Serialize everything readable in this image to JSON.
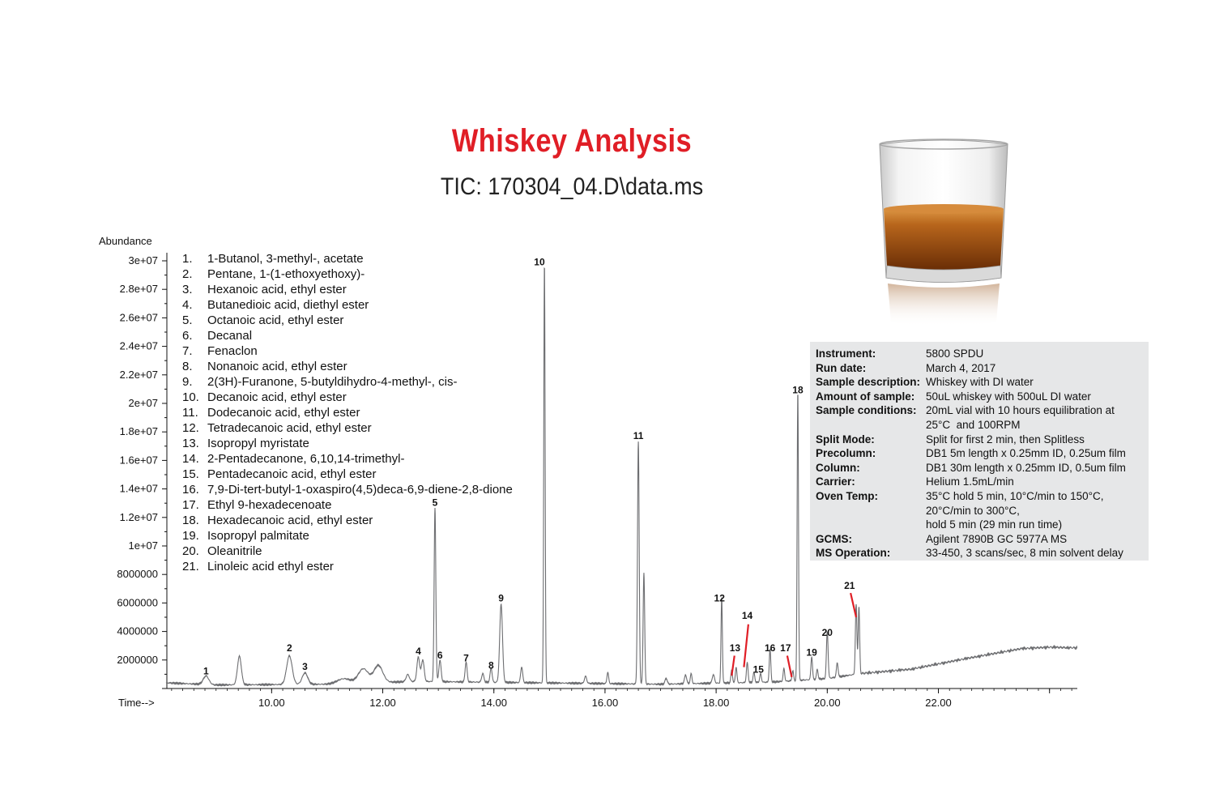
{
  "header": {
    "title": "Whiskey Analysis",
    "subtitle": "TIC: 170304_04.D\\data.ms"
  },
  "axis": {
    "y_title": "Abundance",
    "x_title": "Time-->"
  },
  "legend": [
    {
      "num": "1.",
      "name": "1-Butanol, 3-methyl-, acetate"
    },
    {
      "num": "2.",
      "name": "Pentane, 1-(1-ethoxyethoxy)-"
    },
    {
      "num": "3.",
      "name": "Hexanoic acid, ethyl ester"
    },
    {
      "num": "4.",
      "name": "Butanedioic acid, diethyl ester"
    },
    {
      "num": "5.",
      "name": "Octanoic acid, ethyl ester"
    },
    {
      "num": "6.",
      "name": "Decanal"
    },
    {
      "num": "7.",
      "name": "Fenaclon"
    },
    {
      "num": "8.",
      "name": "Nonanoic acid, ethyl ester"
    },
    {
      "num": "9.",
      "name": "2(3H)-Furanone, 5-butyldihydro-4-methyl-, cis-"
    },
    {
      "num": "10.",
      "name": "Decanoic acid, ethyl ester"
    },
    {
      "num": "11.",
      "name": "Dodecanoic acid, ethyl ester"
    },
    {
      "num": "12.",
      "name": "Tetradecanoic acid, ethyl ester"
    },
    {
      "num": "13.",
      "name": "Isopropyl myristate"
    },
    {
      "num": "14.",
      "name": "2-Pentadecanone, 6,10,14-trimethyl-"
    },
    {
      "num": "15.",
      "name": "Pentadecanoic acid, ethyl ester"
    },
    {
      "num": "16.",
      "name": "7,9-Di-tert-butyl-1-oxaspiro(4,5)deca-6,9-diene-2,8-dione"
    },
    {
      "num": "17.",
      "name": "Ethyl 9-hexadecenoate"
    },
    {
      "num": "18.",
      "name": "Hexadecanoic acid, ethyl ester"
    },
    {
      "num": "19.",
      "name": "Isopropyl palmitate"
    },
    {
      "num": "20.",
      "name": "Oleanitrile"
    },
    {
      "num": "21.",
      "name": "Linoleic acid ethyl ester"
    }
  ],
  "info": [
    {
      "key": "Instrument:",
      "value": "5800 SPDU"
    },
    {
      "key": "Run date:",
      "value": "March 4, 2017"
    },
    {
      "key": "Sample description:",
      "value": "Whiskey with DI water"
    },
    {
      "key": "Amount of sample:",
      "value": "50uL whiskey with 500uL DI water"
    },
    {
      "key": "Sample conditions:",
      "value": "20mL vial with 10 hours equilibration at\n25°C  and 100RPM"
    },
    {
      "key": "Split Mode:",
      "value": "Split for first 2 min, then Splitless"
    },
    {
      "key": "Precolumn:",
      "value": "DB1 5m length x 0.25mm ID, 0.25um film"
    },
    {
      "key": "Column:",
      "value": "DB1 30m length x 0.25mm ID, 0.5um film"
    },
    {
      "key": "Carrier:",
      "value": "Helium 1.5mL/min"
    },
    {
      "key": "Oven Temp:",
      "value": "35°C hold 5 min, 10°C/min to 150°C,\n20°C/min to 300°C,\nhold 5 min (29 min run time)"
    },
    {
      "key": "GCMS:",
      "value": "Agilent 7890B GC 5977A MS"
    },
    {
      "key": "MS Operation:",
      "value": "33-450, 3 scans/sec, 8 min solvent delay"
    }
  ],
  "colors": {
    "title": "#e01e26",
    "trace": "#6d6e71",
    "arrow": "#e01e26",
    "info_box": "#e6e7e8",
    "liquid": "#b8661c"
  },
  "chart_data": {
    "type": "line",
    "title": "TIC: 170304_04.D\\data.ms",
    "xlabel": "Time-->",
    "ylabel": "Abundance",
    "xlim": [
      8.1,
      24.5
    ],
    "ylim": [
      0,
      30000000
    ],
    "x_ticks": [
      10,
      12,
      14,
      16,
      18,
      20,
      22
    ],
    "x_tick_labels": [
      "10.00",
      "12.00",
      "14.00",
      "16.00",
      "18.00",
      "20.00",
      "22.00"
    ],
    "y_ticks": [
      2000000,
      4000000,
      6000000,
      8000000,
      10000000,
      12000000,
      14000000,
      16000000,
      18000000,
      20000000,
      22000000,
      24000000,
      26000000,
      28000000,
      30000000
    ],
    "y_tick_labels": [
      "2000000",
      "4000000",
      "6000000",
      "8000000",
      "1e+07",
      "1.2e+07",
      "1.4e+07",
      "1.6e+07",
      "1.8e+07",
      "2e+07",
      "2.2e+07",
      "2.4e+07",
      "2.6e+07",
      "2.8e+07",
      "3e+07"
    ],
    "baseline": [
      {
        "t": 8.1,
        "y": 400000
      },
      {
        "t": 9.0,
        "y": 250000
      },
      {
        "t": 11.0,
        "y": 300000
      },
      {
        "t": 12.6,
        "y": 500000
      },
      {
        "t": 17.0,
        "y": 300000
      },
      {
        "t": 19.0,
        "y": 450000
      },
      {
        "t": 20.0,
        "y": 700000
      },
      {
        "t": 20.6,
        "y": 1050000
      },
      {
        "t": 21.5,
        "y": 1350000
      },
      {
        "t": 22.5,
        "y": 2100000
      },
      {
        "t": 23.5,
        "y": 2800000
      },
      {
        "t": 24.0,
        "y": 2900000
      },
      {
        "t": 24.5,
        "y": 2850000
      }
    ],
    "peaks": [
      {
        "t": 8.82,
        "h": 600000,
        "w": 0.05
      },
      {
        "t": 9.42,
        "h": 2000000,
        "w": 0.035
      },
      {
        "t": 10.32,
        "h": 2000000,
        "w": 0.05
      },
      {
        "t": 10.6,
        "h": 800000,
        "w": 0.05
      },
      {
        "t": 11.3,
        "h": 350000,
        "w": 0.12
      },
      {
        "t": 11.65,
        "h": 1000000,
        "w": 0.09
      },
      {
        "t": 11.92,
        "h": 1200000,
        "w": 0.08
      },
      {
        "t": 12.45,
        "h": 500000,
        "w": 0.03
      },
      {
        "t": 12.64,
        "h": 1700000,
        "w": 0.025
      },
      {
        "t": 12.72,
        "h": 1500000,
        "w": 0.025
      },
      {
        "t": 12.94,
        "h": 12200000,
        "w": 0.015
      },
      {
        "t": 13.03,
        "h": 1500000,
        "w": 0.02
      },
      {
        "t": 13.5,
        "h": 1400000,
        "w": 0.018
      },
      {
        "t": 13.8,
        "h": 600000,
        "w": 0.02
      },
      {
        "t": 13.95,
        "h": 1000000,
        "w": 0.018
      },
      {
        "t": 14.13,
        "h": 5500000,
        "w": 0.025
      },
      {
        "t": 14.5,
        "h": 1100000,
        "w": 0.018
      },
      {
        "t": 14.91,
        "h": 29500000,
        "w": 0.012
      },
      {
        "t": 15.65,
        "h": 500000,
        "w": 0.02
      },
      {
        "t": 16.05,
        "h": 800000,
        "w": 0.015
      },
      {
        "t": 16.6,
        "h": 17000000,
        "w": 0.015
      },
      {
        "t": 16.7,
        "h": 7800000,
        "w": 0.014
      },
      {
        "t": 17.1,
        "h": 400000,
        "w": 0.02
      },
      {
        "t": 17.45,
        "h": 600000,
        "w": 0.02
      },
      {
        "t": 17.55,
        "h": 700000,
        "w": 0.015
      },
      {
        "t": 17.95,
        "h": 600000,
        "w": 0.02
      },
      {
        "t": 18.1,
        "h": 6000000,
        "w": 0.012
      },
      {
        "t": 18.28,
        "h": 900000,
        "w": 0.014
      },
      {
        "t": 18.36,
        "h": 1100000,
        "w": 0.014
      },
      {
        "t": 18.56,
        "h": 1400000,
        "w": 0.015
      },
      {
        "t": 18.68,
        "h": 700000,
        "w": 0.015
      },
      {
        "t": 18.8,
        "h": 600000,
        "w": 0.015
      },
      {
        "t": 18.97,
        "h": 2300000,
        "w": 0.014
      },
      {
        "t": 19.22,
        "h": 900000,
        "w": 0.014
      },
      {
        "t": 19.38,
        "h": 700000,
        "w": 0.014
      },
      {
        "t": 19.47,
        "h": 20300000,
        "w": 0.012
      },
      {
        "t": 19.72,
        "h": 1600000,
        "w": 0.014
      },
      {
        "t": 19.82,
        "h": 700000,
        "w": 0.014
      },
      {
        "t": 20.0,
        "h": 3300000,
        "w": 0.015
      },
      {
        "t": 20.18,
        "h": 1000000,
        "w": 0.015
      },
      {
        "t": 20.52,
        "h": 4900000,
        "w": 0.014
      },
      {
        "t": 20.57,
        "h": 4700000,
        "w": 0.013
      }
    ],
    "peak_labels": [
      {
        "id": "1",
        "t": 8.82,
        "y": 1000000
      },
      {
        "id": "2",
        "t": 10.32,
        "y": 2600000
      },
      {
        "id": "3",
        "t": 10.6,
        "y": 1300000
      },
      {
        "id": "4",
        "t": 12.64,
        "y": 2400000
      },
      {
        "id": "5",
        "t": 12.94,
        "y": 12800000
      },
      {
        "id": "6",
        "t": 13.03,
        "y": 2100000
      },
      {
        "id": "7",
        "t": 13.5,
        "y": 1900000
      },
      {
        "id": "8",
        "t": 13.95,
        "y": 1400000
      },
      {
        "id": "9",
        "t": 14.13,
        "y": 6100000
      },
      {
        "id": "10",
        "t": 14.82,
        "y": 29700000
      },
      {
        "id": "11",
        "t": 16.6,
        "y": 17500000
      },
      {
        "id": "12",
        "t": 18.06,
        "y": 6100000
      },
      {
        "id": "13",
        "t": 18.34,
        "y": 2600000
      },
      {
        "id": "14",
        "t": 18.56,
        "y": 4900000
      },
      {
        "id": "15",
        "t": 18.76,
        "y": 1100000
      },
      {
        "id": "16",
        "t": 18.97,
        "y": 2600000
      },
      {
        "id": "17",
        "t": 19.25,
        "y": 2600000
      },
      {
        "id": "18",
        "t": 19.47,
        "y": 20700000
      },
      {
        "id": "19",
        "t": 19.72,
        "y": 2300000
      },
      {
        "id": "20",
        "t": 20.0,
        "y": 3700000
      },
      {
        "id": "21",
        "t": 20.4,
        "y": 7000000
      }
    ],
    "arrows": [
      {
        "id": "13",
        "t1": 18.33,
        "y1": 2300000,
        "t2": 18.28,
        "y2": 900000
      },
      {
        "id": "14",
        "t1": 18.58,
        "y1": 4500000,
        "t2": 18.5,
        "y2": 1500000
      },
      {
        "id": "17",
        "t1": 19.28,
        "y1": 2300000,
        "t2": 19.36,
        "y2": 800000
      },
      {
        "id": "21",
        "t1": 20.42,
        "y1": 6700000,
        "t2": 20.52,
        "y2": 5000000
      }
    ]
  }
}
